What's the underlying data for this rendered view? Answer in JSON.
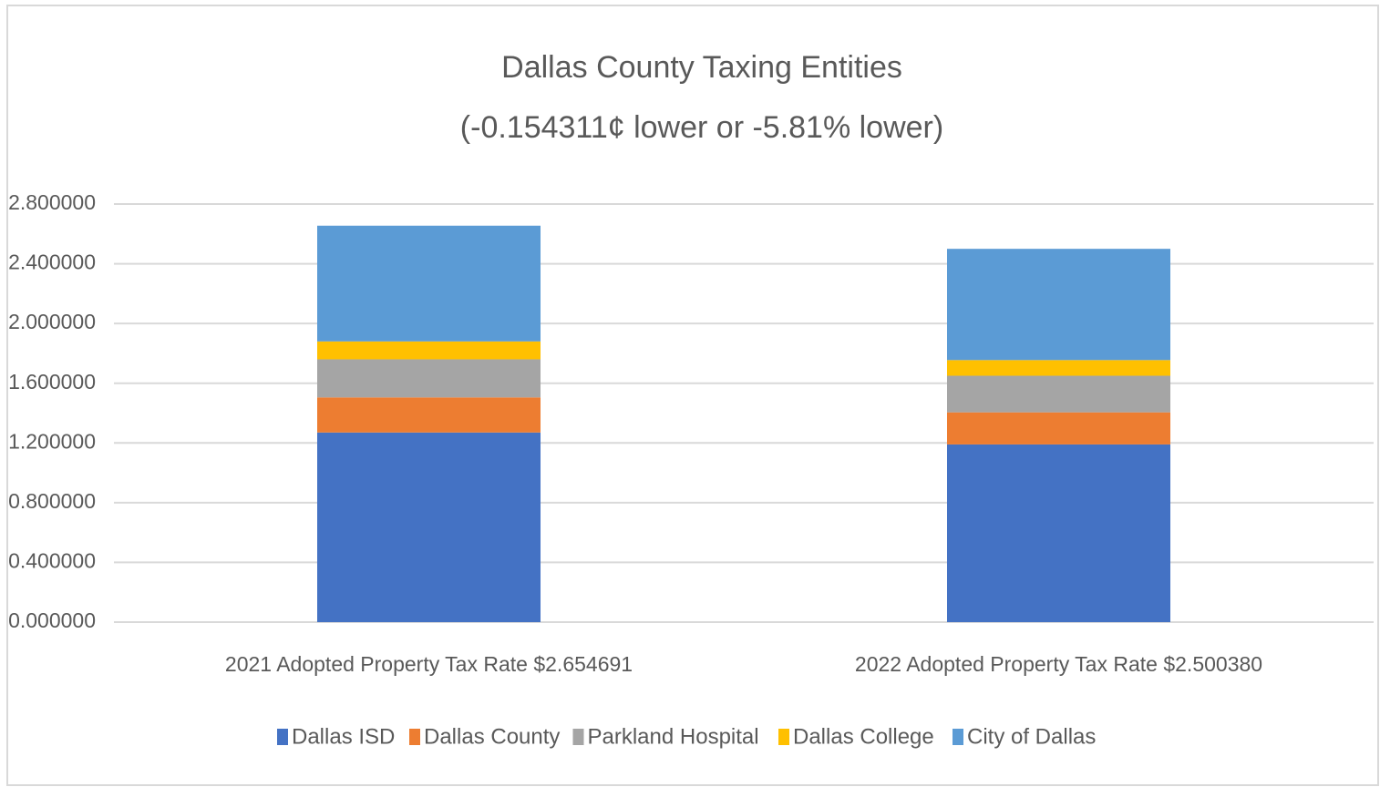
{
  "chart_data": {
    "type": "stacked_bar",
    "title": "Dallas County Taxing Entities",
    "subtitle": "(-0.154311¢ lower or -5.81% lower)",
    "categories": [
      "2021 Adopted Property Tax Rate $2.654691",
      "2022 Adopted Property Tax Rate $2.500380"
    ],
    "series": [
      {
        "name": "Dallas ISD",
        "color": "#4472c4",
        "values": [
          1.27,
          1.19
        ]
      },
      {
        "name": "Dallas County",
        "color": "#ed7d31",
        "values": [
          0.235,
          0.215
        ]
      },
      {
        "name": "Parkland Hospital",
        "color": "#a5a5a5",
        "values": [
          0.255,
          0.245
        ]
      },
      {
        "name": "Dallas College",
        "color": "#ffc000",
        "values": [
          0.12,
          0.105
        ]
      },
      {
        "name": "City of Dallas",
        "color": "#5b9bd5",
        "values": [
          0.775,
          0.745
        ]
      }
    ],
    "ylim": [
      0,
      2.8
    ],
    "yticks": [
      {
        "value": 0,
        "label": "0.000000"
      },
      {
        "value": 0.4,
        "label": "0.400000"
      },
      {
        "value": 0.8,
        "label": "0.800000"
      },
      {
        "value": 1.2,
        "label": "1.200000"
      },
      {
        "value": 1.6,
        "label": "1.600000"
      },
      {
        "value": 2.0,
        "label": "2.000000"
      },
      {
        "value": 2.4,
        "label": "2.400000"
      },
      {
        "value": 2.8,
        "label": "2.800000"
      }
    ],
    "grid": true,
    "legend": "bottom"
  }
}
